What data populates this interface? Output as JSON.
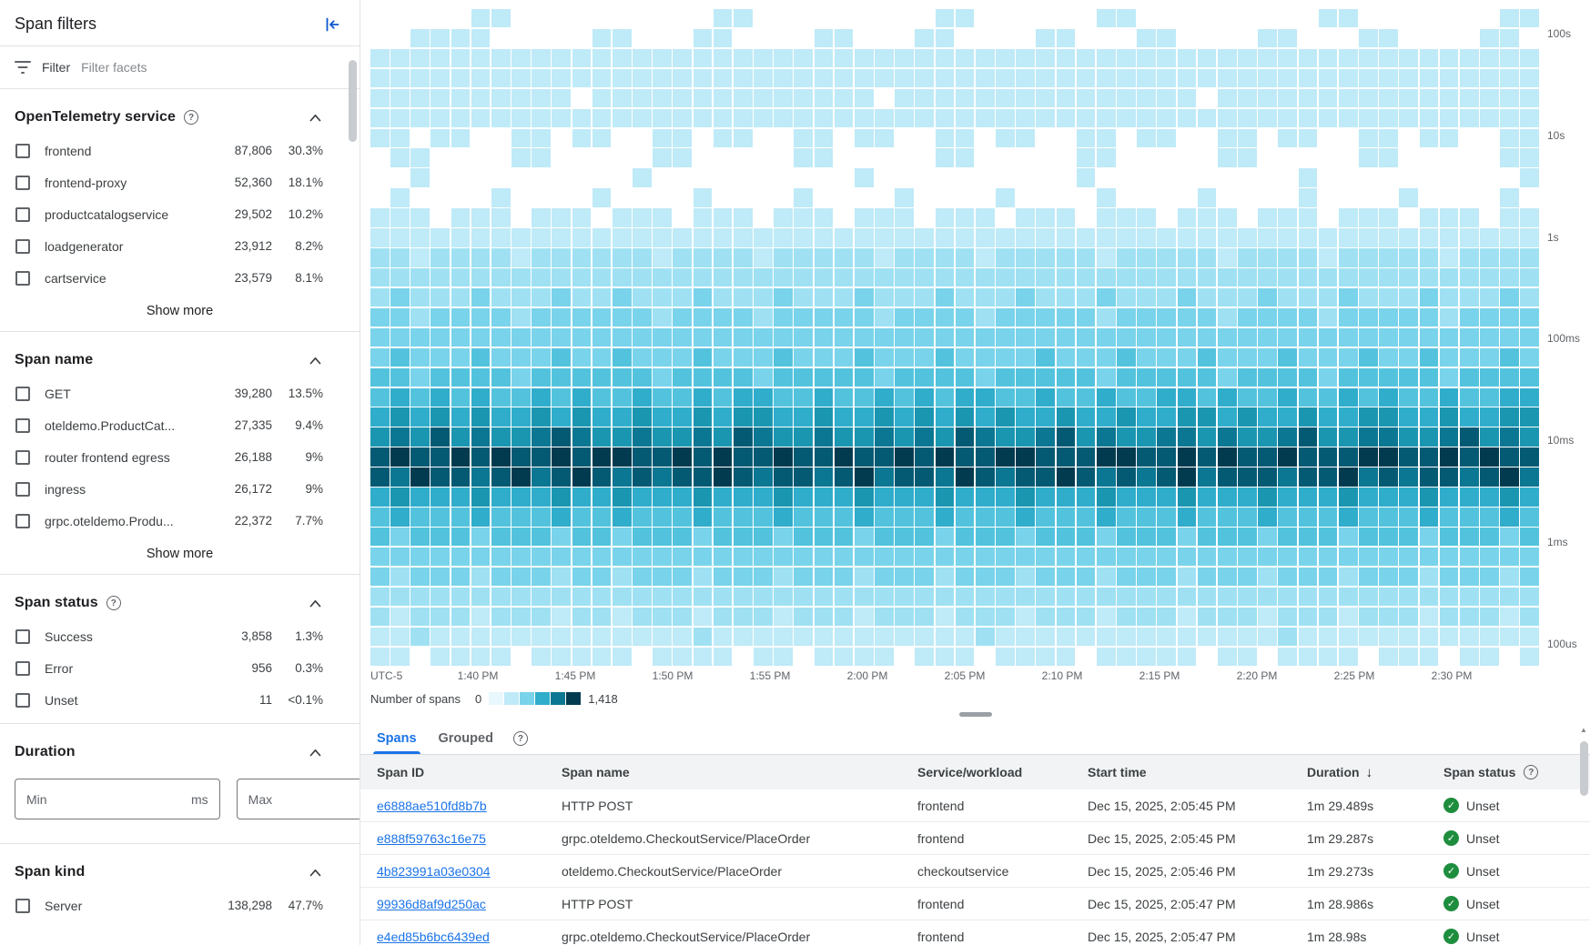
{
  "colors": {
    "accent": "#1a73e8",
    "link": "#1a73e8",
    "status_green": "#1e8e3e",
    "border": "#e1e3e6",
    "text_primary": "#202124",
    "text_secondary": "#5f6368"
  },
  "icons": {
    "help": "?",
    "sort_desc": "↓",
    "status_ok": "✓",
    "scroll_up": "▲"
  },
  "sidebar": {
    "title": "Span filters",
    "filter_label": "Filter",
    "filter_placeholder": "Filter facets",
    "show_more_label": "Show more",
    "sections": [
      {
        "title": "OpenTelemetry service",
        "has_help": true,
        "items": [
          {
            "label": "frontend",
            "count": "87,806",
            "percent": "30.3%"
          },
          {
            "label": "frontend-proxy",
            "count": "52,360",
            "percent": "18.1%"
          },
          {
            "label": "productcatalogservice",
            "count": "29,502",
            "percent": "10.2%"
          },
          {
            "label": "loadgenerator",
            "count": "23,912",
            "percent": "8.2%"
          },
          {
            "label": "cartservice",
            "count": "23,579",
            "percent": "8.1%"
          }
        ]
      },
      {
        "title": "Span name",
        "has_help": false,
        "items": [
          {
            "label": "GET",
            "count": "39,280",
            "percent": "13.5%"
          },
          {
            "label": "oteldemo.ProductCat...",
            "count": "27,335",
            "percent": "9.4%"
          },
          {
            "label": "router frontend egress",
            "count": "26,188",
            "percent": "9%"
          },
          {
            "label": "ingress",
            "count": "26,172",
            "percent": "9%"
          },
          {
            "label": "grpc.oteldemo.Produ...",
            "count": "22,372",
            "percent": "7.7%"
          }
        ]
      },
      {
        "title": "Span status",
        "has_help": true,
        "items": [
          {
            "label": "Success",
            "count": "3,858",
            "percent": "1.3%"
          },
          {
            "label": "Error",
            "count": "956",
            "percent": "0.3%"
          },
          {
            "label": "Unset",
            "count": "11",
            "percent": "<0.1%"
          }
        ]
      }
    ],
    "duration": {
      "title": "Duration",
      "min_placeholder": "Min",
      "max_placeholder": "Max",
      "unit": "ms"
    },
    "span_kind": {
      "title": "Span kind",
      "items": [
        {
          "label": "Server",
          "count": "138,298",
          "percent": "47.7%"
        }
      ]
    }
  },
  "chart_data": {
    "type": "heatmap",
    "x_axis": {
      "timezone": "UTC-5",
      "ticks": [
        "1:40 PM",
        "1:45 PM",
        "1:50 PM",
        "1:55 PM",
        "2:00 PM",
        "2:05 PM",
        "2:10 PM",
        "2:15 PM",
        "2:20 PM",
        "2:25 PM",
        "2:30 PM"
      ]
    },
    "y_axis": {
      "scale": "log",
      "ticks": [
        "100s",
        "10s",
        "1s",
        "100ms",
        "10ms",
        "1ms",
        "100us"
      ]
    },
    "legend": {
      "label": "Number of spans",
      "min": "0",
      "max": "1,418",
      "gradient": [
        "#e9f8fc",
        "#bfeaf7",
        "#79d3ea",
        "#30adcb",
        "#0c7792",
        "#023b4f"
      ]
    },
    "heatmap": {
      "palette": {
        "1": "#bfeaf7",
        "2": "#9fe1f3",
        "3": "#79d3ea",
        "4": "#53c3dd",
        "5": "#30adcb",
        "6": "#1b96b1",
        "7": "#0c7792",
        "8": "#045a73",
        "9": "#023b4f"
      },
      "rows": [
        "0000011000000000011000000000110000001100000000011000000011",
        "0011110000011000110000110001100001100011000011000110000110",
        "1111111111111111111111111111111111111111111111111111111111",
        "1111111111111111111111111111111111111111111111111111111111",
        "1111111111011111111111111011111111111111101111111111111111",
        "1111111111111111111111111111111111111111111111111111111111",
        "1101100110110011011001101100110110011011001101100110110011",
        "0110000110000011000001100000110000011000001100000110000011",
        "0010000000000100000000001000000000010000000000100000000001",
        "0100001000010000100001000010000100001000010000100001000010",
        "1110111011101110111011101110111011101110111011101110111011",
        "1111111111111111111111111111111111111111111111111111111111",
        "2212222122222212222122222122221222221222221222212222212222",
        "2222222222222222222222222222222222222222222222222222222222",
        "2322232223223222322232223222322232223222322232223222322232",
        "3323333233333323333233333233332333332333332333323333323333",
        "3333333333333333333333333333333333333333333333333333333333",
        "3433343334334333433343334333433334333433343334333433433343",
        "4434444344444434444344444344443444443444443444434444434444",
        "4545454454544544545544544545455445445445545445445454454455",
        "5656565565655655656655655656565655655655665655655665565566",
        "6768676678766766768766766767687667867667767667866776678676",
        "8988989889899889898898898898988998889988989889888998898988",
        "8798878978987878898788789788798788987878978887889787887897",
        "5655565556556555655565556555655565556555655565556555655565",
        "4544454445445444544454445444544454445444544454445444544454",
        "4344434443443444344434443444344434443444344434443444344434",
        "3333333333333333333333333333333333333333333333333333333333",
        "3233323332332333233323332333233323332333233323332333233323",
        "2222222222222222222222222222222222222222222222222222222222",
        "2122212221221222122212221222122212221222122212221222122212",
        "1121111111111111211111111111112111111111111112111111111111",
        "1101111011111011110110111101110111101111101101111011101101"
      ]
    }
  },
  "panel": {
    "tabs": [
      {
        "label": "Spans",
        "active": true
      },
      {
        "label": "Grouped",
        "active": false
      }
    ],
    "table": {
      "columns": [
        "Span ID",
        "Span name",
        "Service/workload",
        "Start time",
        "Duration",
        "Span status"
      ],
      "sort_column": "Duration",
      "sort_direction": "desc",
      "rows": [
        {
          "span_id": "e6888ae510fd8b7b",
          "span_name": "HTTP POST",
          "service": "frontend",
          "start_time": "Dec 15, 2025, 2:05:45 PM",
          "duration": "1m 29.489s",
          "status": "Unset"
        },
        {
          "span_id": "e888f59763c16e75",
          "span_name": "grpc.oteldemo.CheckoutService/PlaceOrder",
          "service": "frontend",
          "start_time": "Dec 15, 2025, 2:05:45 PM",
          "duration": "1m 29.287s",
          "status": "Unset"
        },
        {
          "span_id": "4b823991a03e0304",
          "span_name": "oteldemo.CheckoutService/PlaceOrder",
          "service": "checkoutservice",
          "start_time": "Dec 15, 2025, 2:05:46 PM",
          "duration": "1m 29.273s",
          "status": "Unset"
        },
        {
          "span_id": "99936d8af9d250ac",
          "span_name": "HTTP POST",
          "service": "frontend",
          "start_time": "Dec 15, 2025, 2:05:47 PM",
          "duration": "1m 28.986s",
          "status": "Unset"
        },
        {
          "span_id": "e4ed85b6bc6439ed",
          "span_name": "grpc.oteldemo.CheckoutService/PlaceOrder",
          "service": "frontend",
          "start_time": "Dec 15, 2025, 2:05:47 PM",
          "duration": "1m 28.98s",
          "status": "Unset"
        }
      ]
    }
  }
}
